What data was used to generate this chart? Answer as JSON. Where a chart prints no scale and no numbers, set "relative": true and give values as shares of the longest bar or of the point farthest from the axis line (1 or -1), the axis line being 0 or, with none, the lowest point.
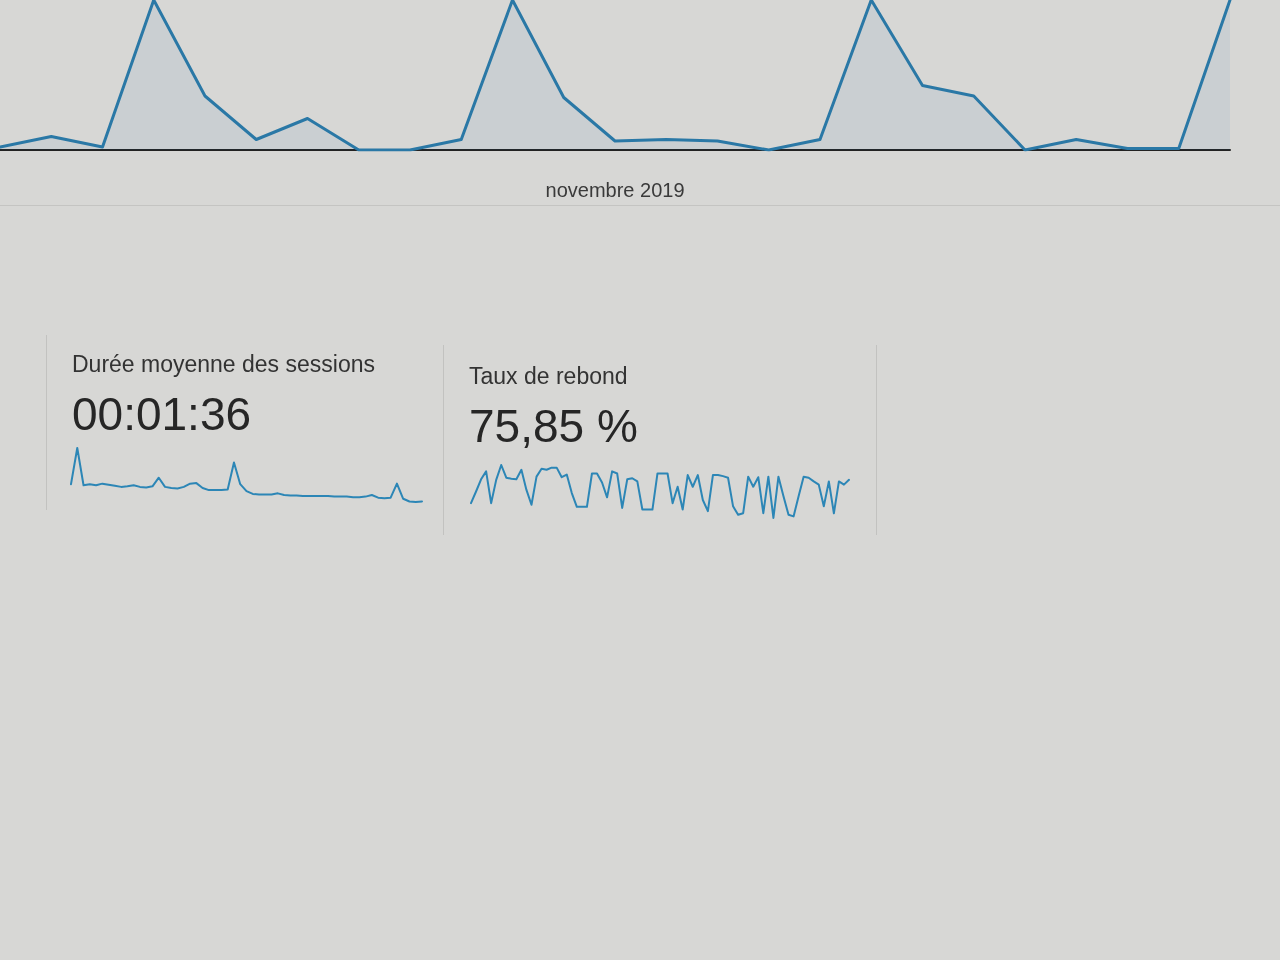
{
  "chart_data": [
    {
      "type": "area",
      "xlabel": "novembre 2019",
      "categories": [
        null,
        null,
        null,
        null,
        null,
        null,
        null,
        null,
        null,
        null,
        null,
        null,
        null,
        null,
        null,
        null,
        null,
        null,
        null,
        null,
        null,
        null,
        null,
        null,
        null
      ],
      "values": [
        0.02,
        0.09,
        0.02,
        1,
        0.36,
        0.07,
        0.21,
        0,
        0,
        0.07,
        1,
        0.35,
        0.06,
        0.07,
        0.06,
        0,
        0.07,
        1,
        0.43,
        0.36,
        0,
        0.07,
        0.01,
        0.01,
        1
      ],
      "color": "#2a78a6",
      "relative": true,
      "marker": "none"
    },
    {
      "type": "line",
      "title": "Durée moyenne des sessions",
      "subtitle": "00:01:36",
      "categories": [
        null,
        null,
        null,
        null,
        null,
        null,
        null,
        null,
        null,
        null,
        null,
        null,
        null,
        null,
        null,
        null,
        null,
        null,
        null,
        null,
        null,
        null,
        null,
        null,
        null,
        null,
        null,
        null,
        null,
        null,
        null,
        null,
        null,
        null,
        null,
        null,
        null,
        null,
        null,
        null,
        null,
        null,
        null,
        null,
        null,
        null,
        null,
        null,
        null,
        null,
        null,
        null,
        null,
        null,
        null,
        null,
        null
      ],
      "values": [
        0.33,
        1,
        0.31,
        0.33,
        0.31,
        0.34,
        0.32,
        0.3,
        0.28,
        0.29,
        0.31,
        0.28,
        0.27,
        0.29,
        0.45,
        0.28,
        0.26,
        0.25,
        0.28,
        0.34,
        0.35,
        0.26,
        0.22,
        0.22,
        0.22,
        0.23,
        0.73,
        0.33,
        0.2,
        0.15,
        0.14,
        0.14,
        0.14,
        0.16,
        0.13,
        0.12,
        0.12,
        0.11,
        0.11,
        0.11,
        0.11,
        0.11,
        0.1,
        0.1,
        0.1,
        0.09,
        0.09,
        0.1,
        0.13,
        0.08,
        0.07,
        0.08,
        0.34,
        0.06,
        0.01,
        0,
        0.01
      ],
      "color": "#2c86b6",
      "relative": true,
      "marker": "none"
    },
    {
      "type": "line",
      "title": "Taux de rebond",
      "subtitle": "75,85 %",
      "categories": [
        null,
        null,
        null,
        null,
        null,
        null,
        null,
        null,
        null,
        null,
        null,
        null,
        null,
        null,
        null,
        null,
        null,
        null,
        null,
        null,
        null,
        null,
        null,
        null,
        null,
        null,
        null,
        null,
        null,
        null,
        null,
        null,
        null,
        null,
        null,
        null,
        null,
        null,
        null,
        null,
        null,
        null,
        null,
        null,
        null,
        null,
        null,
        null,
        null,
        null,
        null,
        null,
        null,
        null,
        null,
        null,
        null,
        null,
        null,
        null,
        null,
        null,
        null,
        null,
        null,
        null,
        null,
        null,
        null,
        null,
        null,
        null,
        null,
        null,
        null,
        null
      ],
      "values": [
        0.28,
        0.5,
        0.73,
        0.88,
        0.28,
        0.72,
        1,
        0.76,
        0.74,
        0.73,
        0.91,
        0.53,
        0.25,
        0.78,
        0.93,
        0.91,
        0.95,
        0.95,
        0.77,
        0.82,
        0.47,
        0.21,
        0.21,
        0.21,
        0.84,
        0.84,
        0.67,
        0.39,
        0.88,
        0.84,
        0.19,
        0.73,
        0.75,
        0.69,
        0.16,
        0.16,
        0.16,
        0.84,
        0.84,
        0.84,
        0.28,
        0.59,
        0.16,
        0.81,
        0.59,
        0.81,
        0.34,
        0.13,
        0.81,
        0.81,
        0.79,
        0.76,
        0.22,
        0.06,
        0.09,
        0.78,
        0.59,
        0.77,
        0.09,
        0.78,
        0,
        0.78,
        0.41,
        0.06,
        0.03,
        0.41,
        0.78,
        0.76,
        0.69,
        0.63,
        0.22,
        0.69,
        0.09,
        0.69,
        0.63,
        0.72
      ],
      "color": "#2c86b6",
      "relative": true,
      "marker": "none"
    }
  ]
}
